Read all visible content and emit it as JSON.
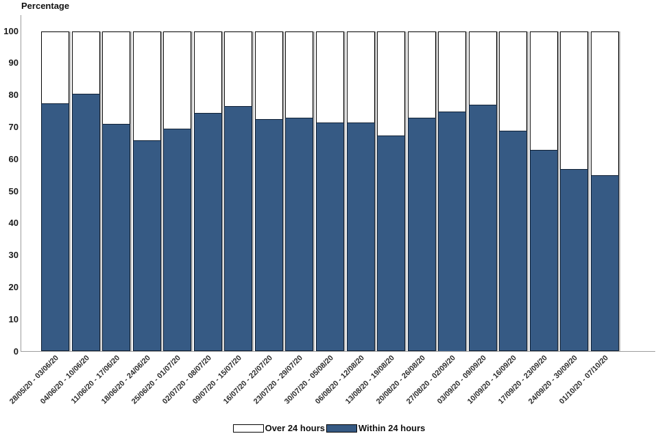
{
  "chart_data": {
    "type": "bar",
    "stacked": true,
    "title": "Percentage",
    "ylabel": "Percentage",
    "xlabel": "",
    "ylim": [
      0,
      100
    ],
    "yticks": [
      0,
      10,
      20,
      30,
      40,
      50,
      60,
      70,
      80,
      90,
      100
    ],
    "grid": false,
    "legend_position": "bottom",
    "legend": [
      "Over 24 hours",
      "Within 24 hours"
    ],
    "categories": [
      "28/05/20 - 03/06/20",
      "04/06/20 - 10/06/20",
      "11/06/20 - 17/06/20",
      "18/06/20 - 24/06/20",
      "25/06/20 - 01/07/20",
      "02/07/20 - 08/07/20",
      "09/07/20 - 15/07/20",
      "16/07/20 - 22/07/20",
      "23/07/20 - 29/07/20",
      "30/07/20 - 05/08/20",
      "06/08/20 - 12/08/20",
      "13/08/20 - 19/08/20",
      "20/08/20 - 26/08/20",
      "27/08/20 - 02/09/20",
      "03/09/20 - 09/09/20",
      "10/09/20 - 16/09/20",
      "17/09/20 - 23/09/20",
      "24/09/20 - 30/09/20",
      "01/10/20 - 07/10/20"
    ],
    "series": [
      {
        "name": "Within 24 hours",
        "color": "#365A84",
        "values": [
          77.5,
          80.5,
          71,
          66,
          69.5,
          74.5,
          76.5,
          72.5,
          73,
          71.5,
          71.5,
          67.5,
          73,
          75,
          77,
          69,
          63,
          57,
          55
        ]
      },
      {
        "name": "Over 24 hours",
        "color": "#FFFFFF",
        "values": [
          22.5,
          19.5,
          29,
          34,
          30.5,
          25.5,
          23.5,
          27.5,
          27,
          28.5,
          28.5,
          32.5,
          27,
          25,
          23,
          31,
          37,
          43,
          45
        ]
      }
    ]
  },
  "colors": {
    "bar_blue": "#365A84",
    "bar_outline": "#000000",
    "axis_gray": "#9B9B9B",
    "shadow_gray": "#B1B1B1",
    "text": "#1A1A1A",
    "background": "#FFFFFF"
  }
}
